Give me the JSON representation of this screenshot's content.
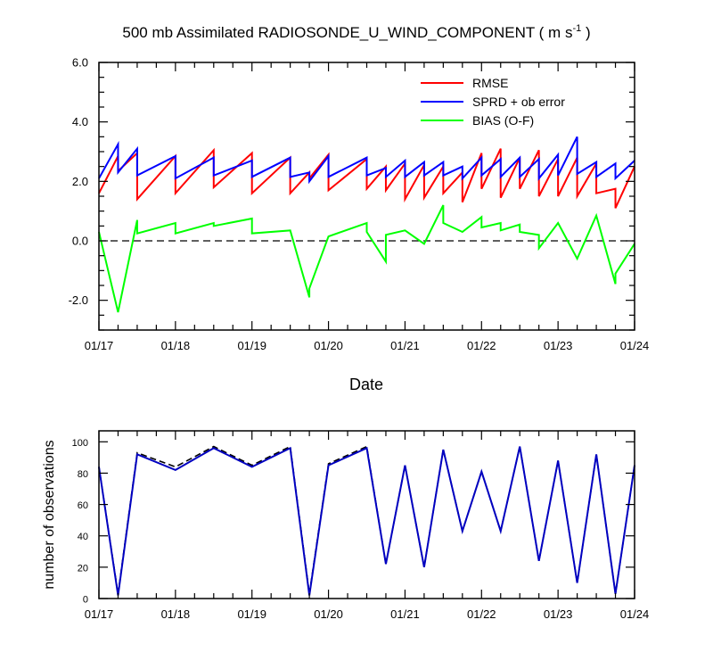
{
  "chart_data": [
    {
      "type": "line",
      "title_main": "500 mb Assimilated RADIOSONDE_U_WIND_COMPONENT ( m s",
      "title_sup": "-1",
      "title_end": " )",
      "xlabel": "Date",
      "ylabel": "",
      "x_ticks": [
        "01/17",
        "01/18",
        "01/19",
        "01/20",
        "01/21",
        "01/22",
        "01/23",
        "01/24"
      ],
      "xlim": [
        0,
        7
      ],
      "ylim": [
        -3,
        6
      ],
      "y_ticks": [
        -2.0,
        0.0,
        2.0,
        4.0,
        6.0
      ],
      "y_tick_labels": [
        "-2.0",
        "0.0",
        "2.0",
        "4.0",
        "6.0"
      ],
      "zero_line": "dashed",
      "legend_position": "top-right",
      "series": [
        {
          "name": "RMSE",
          "color": "#ff0000",
          "points": [
            [
              0,
              1.6
            ],
            [
              0.25,
              2.85
            ],
            [
              0.25,
              2.35
            ],
            [
              0.5,
              2.95
            ],
            [
              0.5,
              1.4
            ],
            [
              1.0,
              2.85
            ],
            [
              1.0,
              1.6
            ],
            [
              1.5,
              3.05
            ],
            [
              1.5,
              1.8
            ],
            [
              2.0,
              2.95
            ],
            [
              2.0,
              1.6
            ],
            [
              2.5,
              2.8
            ],
            [
              2.5,
              1.6
            ],
            [
              2.75,
              2.3
            ],
            [
              2.75,
              2.1
            ],
            [
              3.0,
              2.9
            ],
            [
              3.0,
              1.7
            ],
            [
              3.5,
              2.75
            ],
            [
              3.5,
              1.75
            ],
            [
              3.75,
              2.5
            ],
            [
              3.75,
              1.7
            ],
            [
              4.0,
              2.6
            ],
            [
              4.0,
              1.4
            ],
            [
              4.25,
              2.55
            ],
            [
              4.25,
              1.45
            ],
            [
              4.5,
              2.5
            ],
            [
              4.5,
              1.6
            ],
            [
              4.75,
              2.3
            ],
            [
              4.75,
              1.3
            ],
            [
              5.0,
              2.95
            ],
            [
              5.0,
              1.75
            ],
            [
              5.25,
              3.1
            ],
            [
              5.25,
              1.45
            ],
            [
              5.5,
              2.8
            ],
            [
              5.5,
              1.75
            ],
            [
              5.75,
              3.05
            ],
            [
              5.75,
              1.5
            ],
            [
              6.0,
              2.75
            ],
            [
              6.0,
              1.5
            ],
            [
              6.25,
              2.8
            ],
            [
              6.25,
              1.5
            ],
            [
              6.5,
              2.6
            ],
            [
              6.5,
              1.6
            ],
            [
              6.75,
              1.75
            ],
            [
              6.75,
              1.1
            ],
            [
              7.0,
              2.5
            ]
          ]
        },
        {
          "name": "SPRD + ob error",
          "color": "#0000ff",
          "points": [
            [
              0,
              2.1
            ],
            [
              0.25,
              3.25
            ],
            [
              0.25,
              2.3
            ],
            [
              0.5,
              3.1
            ],
            [
              0.5,
              2.2
            ],
            [
              1.0,
              2.85
            ],
            [
              1.0,
              2.1
            ],
            [
              1.5,
              2.8
            ],
            [
              1.5,
              2.2
            ],
            [
              2.0,
              2.7
            ],
            [
              2.0,
              2.15
            ],
            [
              2.5,
              2.8
            ],
            [
              2.5,
              2.15
            ],
            [
              2.75,
              2.3
            ],
            [
              2.75,
              2.0
            ],
            [
              3.0,
              2.85
            ],
            [
              3.0,
              2.15
            ],
            [
              3.5,
              2.8
            ],
            [
              3.5,
              2.2
            ],
            [
              3.75,
              2.45
            ],
            [
              3.75,
              2.15
            ],
            [
              4.0,
              2.7
            ],
            [
              4.0,
              2.15
            ],
            [
              4.25,
              2.65
            ],
            [
              4.25,
              2.2
            ],
            [
              4.5,
              2.65
            ],
            [
              4.5,
              2.2
            ],
            [
              4.75,
              2.5
            ],
            [
              4.75,
              2.1
            ],
            [
              5.0,
              2.8
            ],
            [
              5.0,
              2.2
            ],
            [
              5.25,
              2.75
            ],
            [
              5.25,
              2.15
            ],
            [
              5.5,
              2.8
            ],
            [
              5.5,
              2.15
            ],
            [
              5.75,
              2.75
            ],
            [
              5.75,
              2.1
            ],
            [
              6.0,
              2.9
            ],
            [
              6.0,
              2.2
            ],
            [
              6.25,
              3.5
            ],
            [
              6.25,
              2.25
            ],
            [
              6.5,
              2.65
            ],
            [
              6.5,
              2.15
            ],
            [
              6.75,
              2.6
            ],
            [
              6.75,
              2.1
            ],
            [
              7.0,
              2.7
            ]
          ]
        },
        {
          "name": "BIAS (O-F)",
          "color": "#00ff00",
          "points": [
            [
              0,
              0.3
            ],
            [
              0.25,
              -2.4
            ],
            [
              0.5,
              0.7
            ],
            [
              0.5,
              0.25
            ],
            [
              1.0,
              0.6
            ],
            [
              1.0,
              0.25
            ],
            [
              1.5,
              0.6
            ],
            [
              1.5,
              0.5
            ],
            [
              2.0,
              0.75
            ],
            [
              2.0,
              0.25
            ],
            [
              2.5,
              0.35
            ],
            [
              2.75,
              -1.9
            ],
            [
              2.75,
              -1.6
            ],
            [
              3.0,
              0.15
            ],
            [
              3.5,
              0.6
            ],
            [
              3.5,
              0.3
            ],
            [
              3.75,
              -0.7
            ],
            [
              3.75,
              0.2
            ],
            [
              4.0,
              0.35
            ],
            [
              4.25,
              -0.1
            ],
            [
              4.5,
              1.2
            ],
            [
              4.5,
              0.6
            ],
            [
              4.75,
              0.3
            ],
            [
              5.0,
              0.8
            ],
            [
              5.0,
              0.45
            ],
            [
              5.25,
              0.6
            ],
            [
              5.25,
              0.35
            ],
            [
              5.5,
              0.55
            ],
            [
              5.5,
              0.3
            ],
            [
              5.75,
              0.2
            ],
            [
              5.75,
              -0.25
            ],
            [
              6.0,
              0.6
            ],
            [
              6.25,
              -0.6
            ],
            [
              6.5,
              0.85
            ],
            [
              6.75,
              -1.45
            ],
            [
              6.75,
              -1.1
            ],
            [
              7.0,
              -0.1
            ]
          ]
        }
      ]
    },
    {
      "type": "line",
      "title": "",
      "xlabel": "",
      "ylabel": "number of observations",
      "x_ticks": [
        "01/17",
        "01/18",
        "01/19",
        "01/20",
        "01/21",
        "01/22",
        "01/23",
        "01/24"
      ],
      "xlim": [
        0,
        7
      ],
      "ylim": [
        0,
        107
      ],
      "y_ticks": [
        0,
        20,
        40,
        60,
        80,
        100
      ],
      "y_tick_labels": [
        "0",
        "20",
        "40",
        "60",
        "80",
        "100"
      ],
      "series": [
        {
          "color": "#000000",
          "style": "dashed",
          "points": [
            [
              0,
              84
            ],
            [
              0.25,
              3
            ],
            [
              0.5,
              93
            ],
            [
              1.0,
              84
            ],
            [
              1.5,
              97
            ],
            [
              2.0,
              85
            ],
            [
              2.5,
              97
            ],
            [
              2.75,
              3
            ],
            [
              3.0,
              86
            ],
            [
              3.5,
              97
            ],
            [
              3.75,
              22
            ],
            [
              4.0,
              85
            ],
            [
              4.25,
              20
            ],
            [
              4.5,
              95
            ],
            [
              4.75,
              43
            ],
            [
              5.0,
              81
            ],
            [
              5.25,
              43
            ],
            [
              5.5,
              97
            ],
            [
              5.75,
              24
            ],
            [
              6.0,
              88
            ],
            [
              6.25,
              10
            ],
            [
              6.5,
              92
            ],
            [
              6.75,
              3
            ],
            [
              7.0,
              85
            ]
          ]
        },
        {
          "color": "#0000c0",
          "style": "solid",
          "points": [
            [
              0,
              84
            ],
            [
              0.25,
              2
            ],
            [
              0.5,
              92
            ],
            [
              1.0,
              82
            ],
            [
              1.5,
              96
            ],
            [
              2.0,
              84
            ],
            [
              2.5,
              96
            ],
            [
              2.75,
              2
            ],
            [
              3.0,
              85
            ],
            [
              3.5,
              96
            ],
            [
              3.75,
              22
            ],
            [
              4.0,
              85
            ],
            [
              4.25,
              20
            ],
            [
              4.5,
              95
            ],
            [
              4.75,
              43
            ],
            [
              5.0,
              81
            ],
            [
              5.25,
              43
            ],
            [
              5.5,
              97
            ],
            [
              5.75,
              24
            ],
            [
              6.0,
              88
            ],
            [
              6.25,
              10
            ],
            [
              6.5,
              92
            ],
            [
              6.75,
              3
            ],
            [
              7.0,
              85
            ]
          ]
        }
      ]
    }
  ]
}
